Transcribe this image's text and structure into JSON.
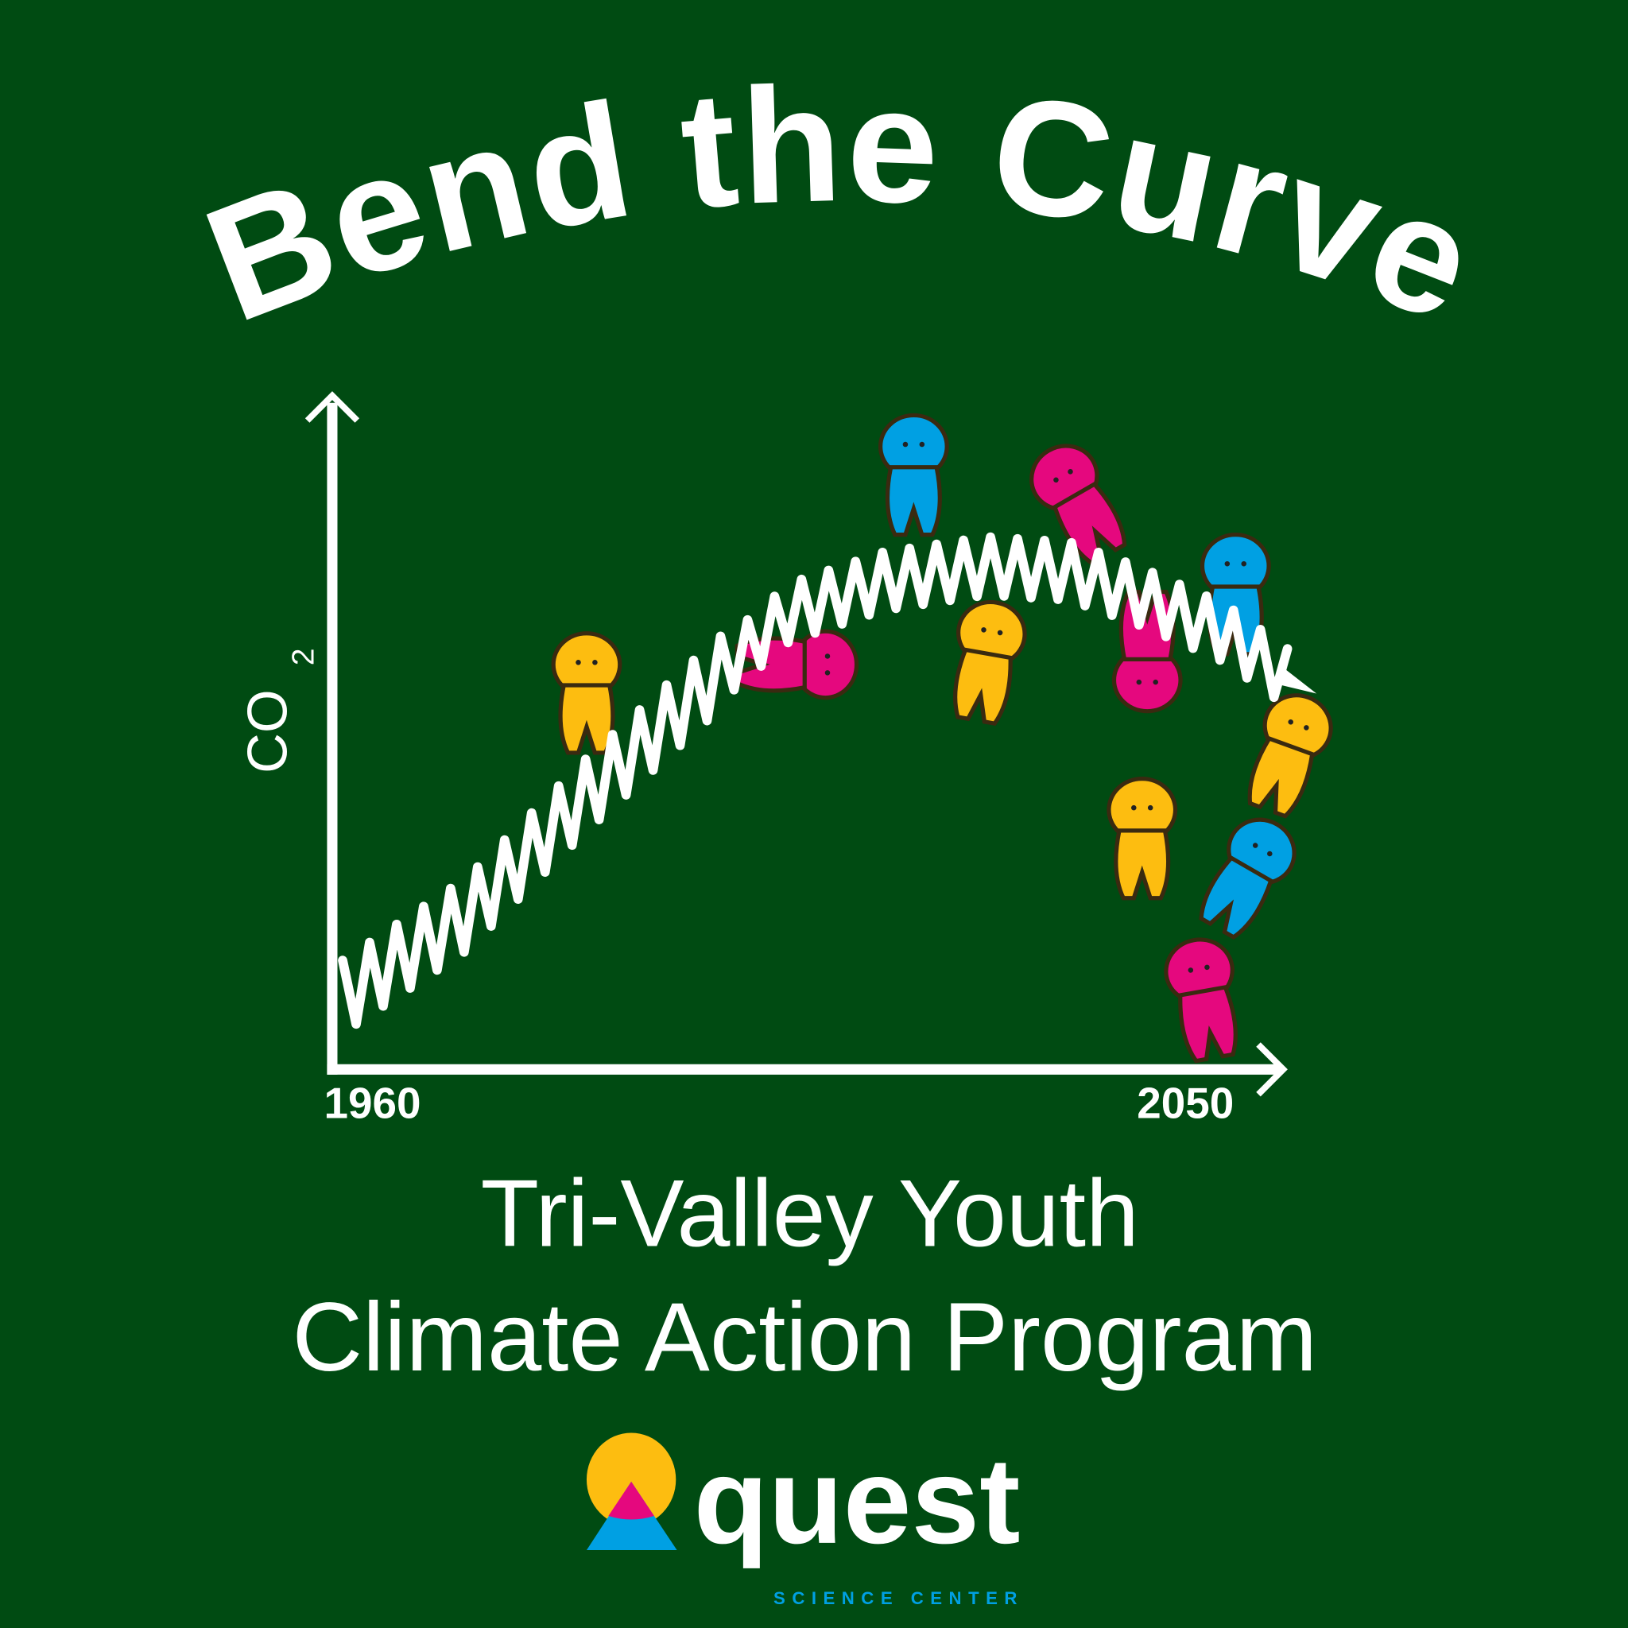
{
  "title": "Bend the Curve",
  "graph": {
    "y_axis_label": "CO",
    "y_axis_subscript": "2",
    "x_start_label": "1960",
    "x_end_label": "2050"
  },
  "program": {
    "line1": "Tri-Valley Youth",
    "line2": "Climate Action Program"
  },
  "logo": {
    "wordmark": "quest",
    "tagline": "SCIENCE CENTER"
  },
  "colors": {
    "background": "#004b12",
    "yellow": "#fdbd10",
    "magenta": "#e5087e",
    "blue": "#00a0e3",
    "white": "#ffffff"
  }
}
